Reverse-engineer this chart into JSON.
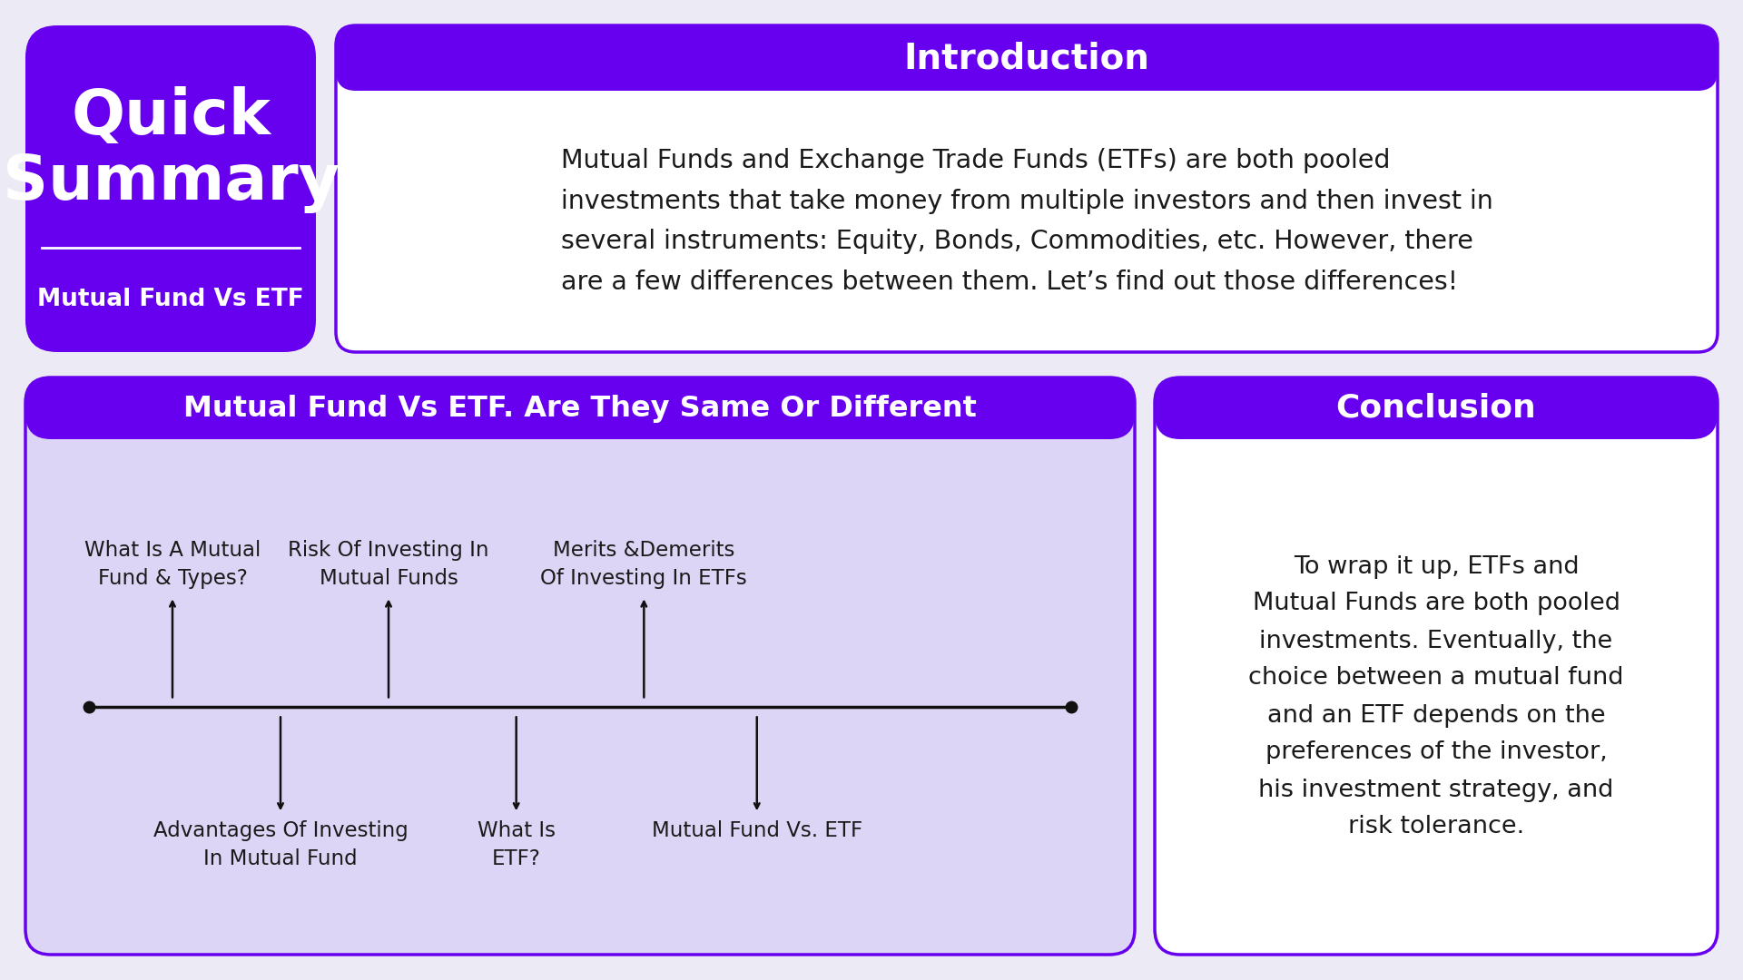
{
  "bg_color": "#eceaf5",
  "purple": "#6600ee",
  "white": "#ffffff",
  "black": "#111111",
  "dark_text": "#222222",
  "title_text_line1": "Quick",
  "title_text_line2": "Summary",
  "subtitle_text": "Mutual Fund Vs ETF",
  "intro_title": "Introduction",
  "intro_body_lines": [
    "Mutual Funds and Exchange Trade Funds (ETFs) are both pooled",
    "investments that take money from multiple investors and then invest in",
    "several instruments: Equity, Bonds, Commodities, etc. However, there",
    "are a few differences between them. Let’s find out those differences!"
  ],
  "timeline_title": "Mutual Fund Vs ETF. Are They Same Or Different",
  "timeline_above": [
    {
      "label": "What Is A Mutual\nFund & Types?",
      "xf": 0.085
    },
    {
      "label": "Risk Of Investing In\nMutual Funds",
      "xf": 0.305
    },
    {
      "label": "Merits &Demerits\nOf Investing In ETFs",
      "xf": 0.565
    }
  ],
  "timeline_below": [
    {
      "label": "Advantages Of Investing\nIn Mutual Fund",
      "xf": 0.195
    },
    {
      "label": "What Is\nETF?",
      "xf": 0.435
    },
    {
      "label": "Mutual Fund Vs. ETF",
      "xf": 0.68
    }
  ],
  "conclusion_title": "Conclusion",
  "conclusion_body_lines": [
    "To wrap it up, ETFs and",
    "Mutual Funds are both pooled",
    "investments. Eventually, the",
    "choice between a mutual fund",
    "and an ETF depends on the",
    "preferences of the investor,",
    "his investment strategy, and",
    "risk tolerance."
  ]
}
